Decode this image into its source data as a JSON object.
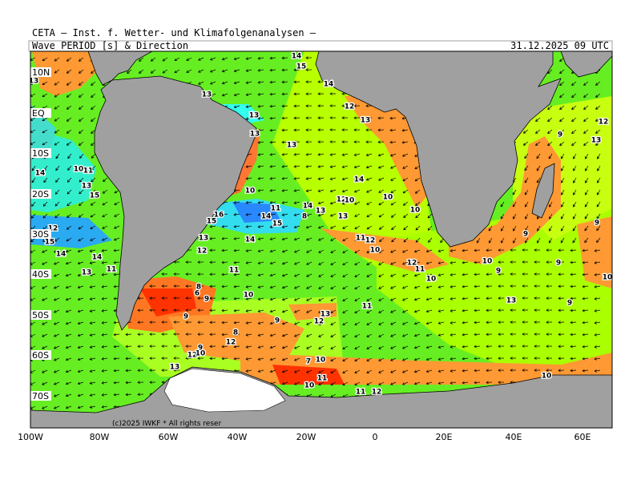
{
  "header": {
    "title": "CETA — Inst. f. Wetter- und Klimafolgenanalysen —",
    "subtitle": "Wave_PERIOD [s] & Direction",
    "date": "31.12.2025 09 UTC"
  },
  "axes": {
    "x_labels": [
      "100W",
      "80W",
      "60W",
      "40W",
      "20W",
      "0",
      "20E",
      "40E",
      "60E"
    ],
    "y_labels": [
      "10N",
      "EQ",
      "10S",
      "20S",
      "30S",
      "40S",
      "50S",
      "60S",
      "70S"
    ]
  },
  "copyright": "(c)2025 IWKF * All rights reser",
  "period_labels": [
    13,
    14,
    15,
    14,
    13,
    12,
    13,
    13,
    13,
    13,
    12,
    9,
    13,
    14,
    10,
    11,
    13,
    15,
    10,
    14,
    10,
    10,
    12,
    10,
    14,
    13,
    11,
    8,
    13,
    16,
    15,
    14,
    15,
    12,
    15,
    13,
    14,
    11,
    12,
    9,
    9,
    12,
    10,
    14,
    14,
    11,
    13,
    11,
    12,
    11,
    10,
    9,
    9,
    10,
    10,
    8,
    6,
    9,
    10,
    11,
    13,
    9,
    13,
    12,
    9,
    9,
    8,
    12,
    9,
    12,
    10,
    10,
    10,
    7,
    11,
    13,
    10,
    11,
    12,
    10
  ]
}
